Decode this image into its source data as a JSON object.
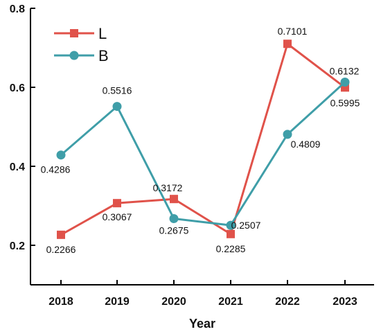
{
  "chart_data": {
    "type": "line",
    "title": "",
    "xlabel": "Year",
    "ylabel": "",
    "categories": [
      "2018",
      "2019",
      "2020",
      "2021",
      "2022",
      "2023"
    ],
    "ylim": [
      0.1,
      0.8
    ],
    "yticks": [
      0.2,
      0.4,
      0.6,
      0.8
    ],
    "ytick_labels": [
      "0.2",
      "0.4",
      "0.6",
      "0.8"
    ],
    "grid": false,
    "legend_position": "top-left",
    "series": [
      {
        "name": "L",
        "color": "#e0524a",
        "marker": "square",
        "values": [
          0.2266,
          0.3067,
          0.3172,
          0.2285,
          0.7101,
          0.5995
        ],
        "labels": [
          "0.2266",
          "0.3067",
          "0.3172",
          "0.2285",
          "0.7101",
          "0.5995"
        ]
      },
      {
        "name": "B",
        "color": "#3f9ea8",
        "marker": "circle",
        "values": [
          0.4286,
          0.5516,
          0.2675,
          0.2507,
          0.4809,
          0.6132
        ],
        "labels": [
          "0.4286",
          "0.5516",
          "0.2675",
          "0.2507",
          "0.4809",
          "0.6132"
        ]
      }
    ]
  }
}
